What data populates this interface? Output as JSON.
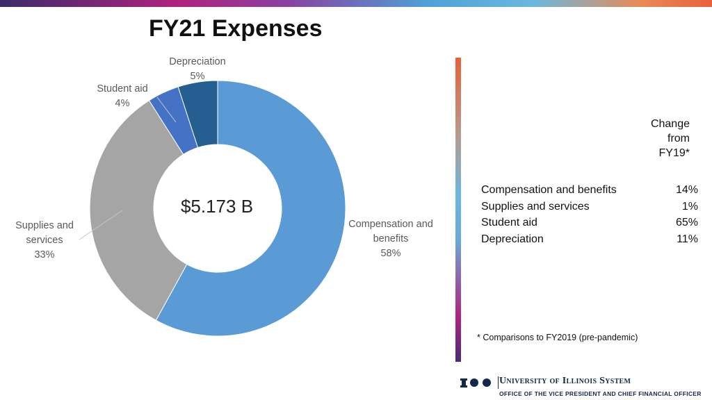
{
  "title": "FY21 Expenses",
  "center_total": "$5.173 B",
  "chart_data": {
    "type": "pie",
    "categories": [
      "Compensation and benefits",
      "Supplies and services",
      "Student aid",
      "Depreciation"
    ],
    "values": [
      58,
      33,
      4,
      5
    ],
    "unit": "%",
    "colors": [
      "#5b9bd5",
      "#a5a5a5",
      "#4472c4",
      "#255e91"
    ]
  },
  "slice_labels": [
    {
      "name": "Compensation and benefits",
      "lines": [
        "Compensation and",
        "benefits"
      ],
      "pct": "58%"
    },
    {
      "name": "Supplies and services",
      "lines": [
        "Supplies and",
        "services"
      ],
      "pct": "33%"
    },
    {
      "name": "Student aid",
      "lines": [
        "Student aid"
      ],
      "pct": "4%"
    },
    {
      "name": "Depreciation",
      "lines": [
        "Depreciation"
      ],
      "pct": "5%"
    }
  ],
  "change_table": {
    "header": [
      "Change",
      "from",
      "FY19*"
    ],
    "rows": [
      {
        "label": "Compensation and benefits",
        "value": "14%"
      },
      {
        "label": "Supplies and services",
        "value": "1%"
      },
      {
        "label": "Student aid",
        "value": "65%"
      },
      {
        "label": "Depreciation",
        "value": "11%"
      }
    ]
  },
  "footnote": "*  Comparisons to FY2019 (pre-pandemic)",
  "logo": {
    "name": "University of Illinois System",
    "subtitle": "OFFICE OF THE VICE PRESIDENT AND CHIEF FINANCIAL OFFICER"
  }
}
